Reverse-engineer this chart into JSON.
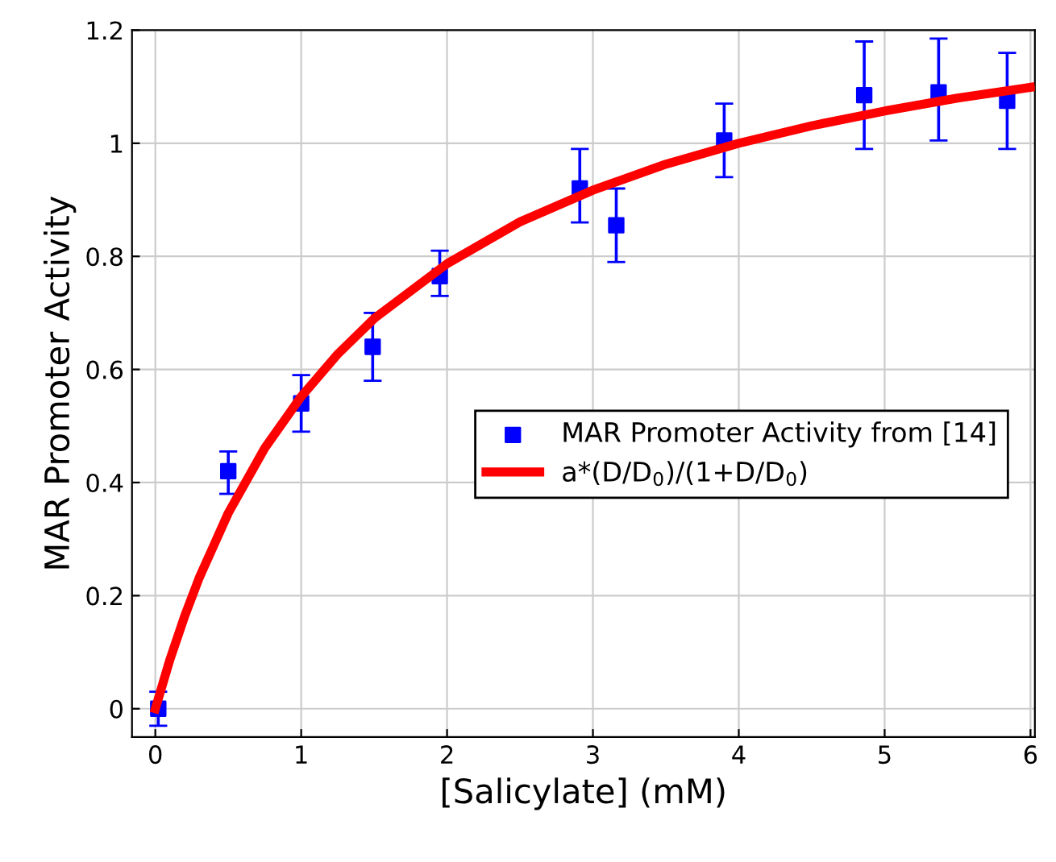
{
  "chart_data": {
    "type": "scatter",
    "xlabel": "[Salicylate] (mM)",
    "ylabel": "MAR Promoter Activity",
    "xlim": [
      -0.16,
      6.03
    ],
    "ylim": [
      -0.05,
      1.2
    ],
    "xticks": [
      0,
      1,
      2,
      3,
      4,
      5,
      6
    ],
    "yticks": [
      0,
      0.2,
      0.4,
      0.6,
      0.8,
      1,
      1.2
    ],
    "grid": true,
    "legend": "center right",
    "series": [
      {
        "name": "MAR Promoter Activity from [14]",
        "marker": "square",
        "color": "#0000ff",
        "x": [
          0.02,
          0.5,
          1.0,
          1.49,
          1.95,
          2.91,
          3.16,
          3.9,
          4.86,
          5.37,
          5.84
        ],
        "values": [
          0,
          0.42,
          0.54,
          0.64,
          0.765,
          0.92,
          0.855,
          1.005,
          1.085,
          1.09,
          1.075
        ],
        "errors": [
          [
            -0.03,
            0.03
          ],
          [
            0.38,
            0.455
          ],
          [
            0.49,
            0.59
          ],
          [
            0.58,
            0.7
          ],
          [
            0.73,
            0.81
          ],
          [
            0.86,
            0.99
          ],
          [
            0.79,
            0.92
          ],
          [
            0.94,
            1.07
          ],
          [
            0.99,
            1.18
          ],
          [
            1.005,
            1.185
          ],
          [
            0.99,
            1.16
          ]
        ]
      },
      {
        "name": "a*(D/D$_{0}$)/(1+D/D$_{0}$)",
        "type": "line",
        "line_style": "solid",
        "color": "#ff0000",
        "x": [
          0,
          0.1,
          0.2,
          0.3,
          0.5,
          0.75,
          1,
          1.25,
          1.5,
          2,
          2.5,
          3,
          3.5,
          4,
          4.5,
          5,
          5.5,
          6
        ],
        "values": [
          0,
          0.087,
          0.163,
          0.231,
          0.346,
          0.461,
          0.552,
          0.627,
          0.69,
          0.787,
          0.861,
          0.917,
          0.963,
          1.0,
          1.031,
          1.057,
          1.08,
          1.099
        ]
      }
    ]
  }
}
